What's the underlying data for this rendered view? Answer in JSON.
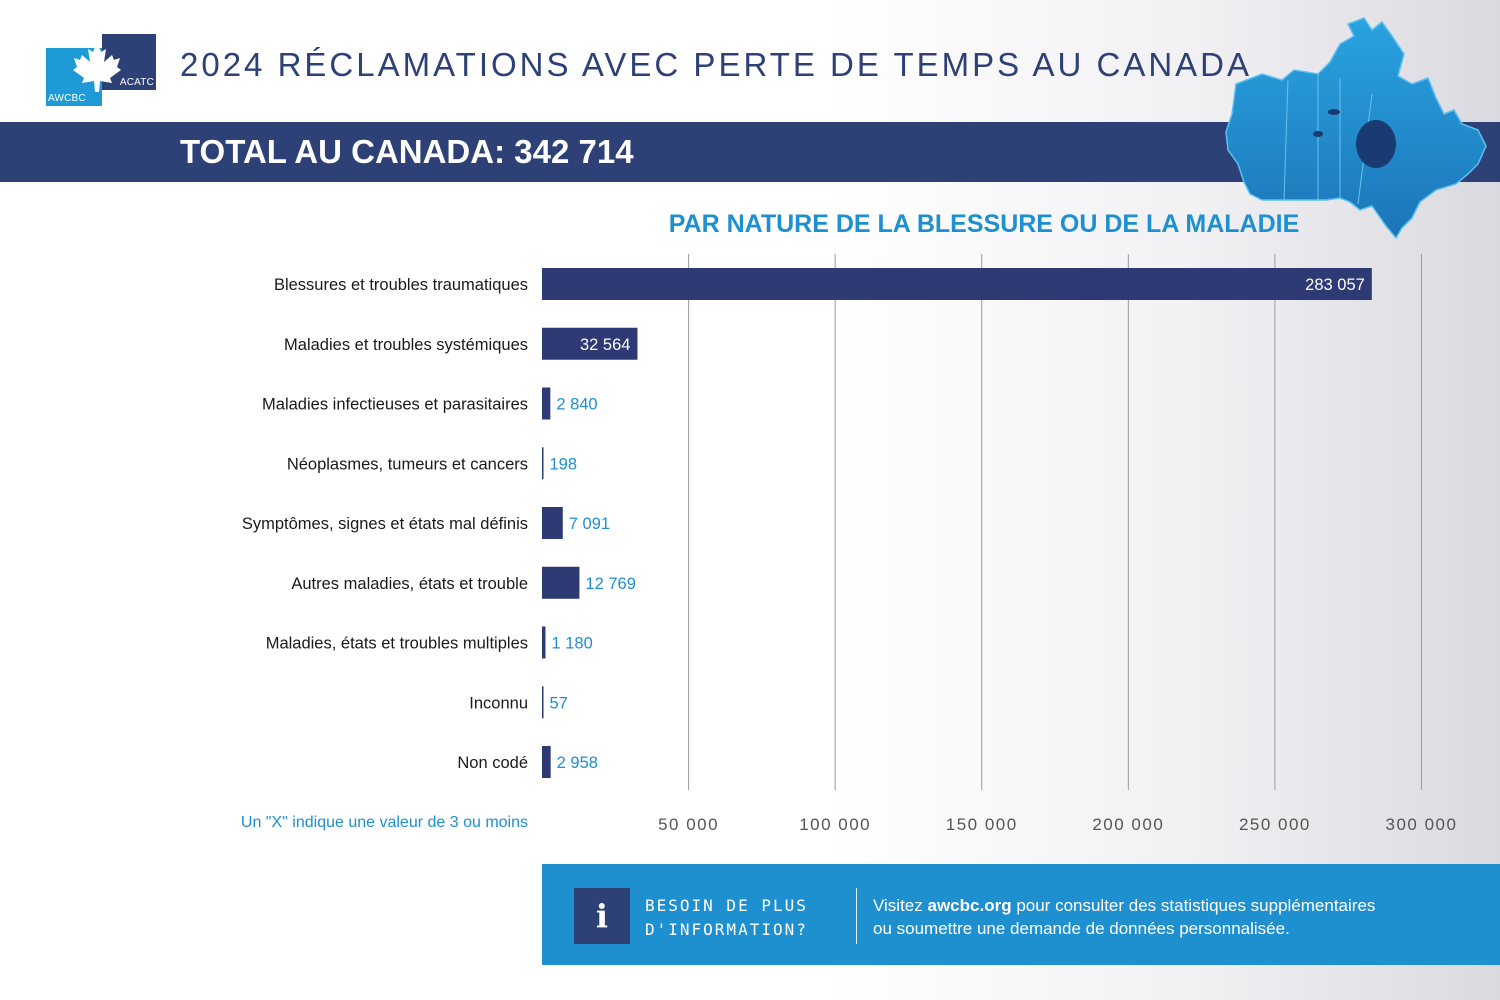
{
  "header": {
    "title": "2024 RÉCLAMATIONS AVEC PERTE DE TEMPS AU CANADA",
    "total_banner": "TOTAL AU CANADA: 342 714",
    "logo_text_left": "AWCBC",
    "logo_text_right": "ACATC"
  },
  "colors": {
    "navy": "#2e4177",
    "blue": "#1e8fcf",
    "bar": "#2e3a74"
  },
  "chart_data": {
    "type": "bar",
    "orientation": "horizontal",
    "title": "PAR NATURE DE LA BLESSURE OU DE LA MALADIE",
    "categories": [
      "Blessures et troubles traumatiques",
      "Maladies et troubles systémiques",
      "Maladies infectieuses et parasitaires",
      "Néoplasmes, tumeurs et cancers",
      "Symptômes, signes et états mal définis",
      "Autres maladies, états et trouble",
      "Maladies, états et troubles multiples",
      "Inconnu",
      "Non codé"
    ],
    "values": [
      283057,
      32564,
      2840,
      198,
      7091,
      12769,
      1180,
      57,
      2958
    ],
    "value_labels": [
      "283 057",
      "32 564",
      "2 840",
      "198",
      "7 091",
      "12 769",
      "1 180",
      "57",
      "2 958"
    ],
    "xlim": [
      0,
      300000
    ],
    "xticks": [
      50000,
      100000,
      150000,
      200000,
      250000,
      300000
    ],
    "xtick_labels": [
      "50 000",
      "100 000",
      "150 000",
      "200 000",
      "250 000",
      "300 000"
    ],
    "grid": true,
    "note": "Un \"X\" indique une valeur de 3 ou moins"
  },
  "info_box": {
    "icon": "info-icon",
    "icon_glyph": "i",
    "heading_line1": "BESOIN DE PLUS",
    "heading_line2": "D'INFORMATION?",
    "body_prefix": "Visitez ",
    "body_link": "awcbc.org",
    "body_rest": " pour consulter des statistiques supplémentaires",
    "body_line2": "ou soumettre une demande de données personnalisée."
  }
}
